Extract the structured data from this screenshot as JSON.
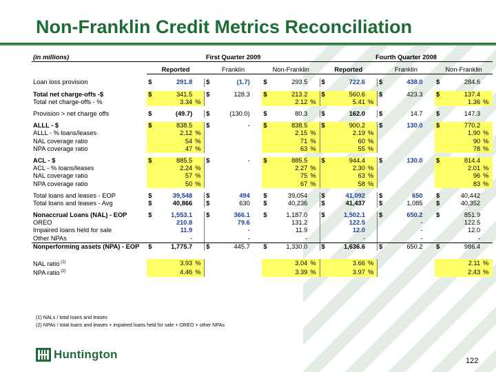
{
  "title": "Non-Franklin Credit Metrics Reconciliation",
  "units": "(in millions)",
  "periods": [
    "First Quarter 2009",
    "Fourth Quarter 2008"
  ],
  "columns": [
    "Reported",
    "Franklin",
    "Non-Franklin",
    "Reported",
    "Franklin",
    "Non-Franklin"
  ],
  "rows": [
    {
      "label": "Loan loss provision",
      "bold": false,
      "cells": [
        [
          "$",
          "291.8",
          "",
          "blue"
        ],
        [
          "$",
          "(1.7)",
          "",
          "blue"
        ],
        [
          "$",
          "293.5",
          "",
          ""
        ],
        [
          "$",
          "722.6",
          "",
          "blue"
        ],
        [
          "$",
          "438.0",
          "",
          "blue"
        ],
        [
          "$",
          "284.6",
          "",
          ""
        ]
      ]
    },
    {
      "sp": true
    },
    {
      "label": "Total net charge-offs -$",
      "bold": true,
      "cells": [
        [
          "$",
          "341.5",
          "",
          "y"
        ],
        [
          "$",
          "128.3",
          "",
          ""
        ],
        [
          "$",
          "213.2",
          "",
          "y"
        ],
        [
          "$",
          "560.6",
          "",
          "y"
        ],
        [
          "$",
          "423.3",
          "",
          ""
        ],
        [
          "$",
          "137.4",
          "",
          "y"
        ]
      ]
    },
    {
      "label": "Total net charge-offs - %",
      "bold": false,
      "cells": [
        [
          "",
          "3.34",
          "%",
          "y"
        ],
        [
          "",
          "",
          "",
          ""
        ],
        [
          "",
          "2.12",
          "%",
          "y"
        ],
        [
          "",
          "5.41",
          "%",
          "y"
        ],
        [
          "",
          "",
          "",
          ""
        ],
        [
          "",
          "1.36",
          "%",
          "y"
        ]
      ]
    },
    {
      "sp": true
    },
    {
      "label": "Provision > net charge offs",
      "bold": false,
      "cells": [
        [
          "$",
          "(49.7)",
          "",
          "b"
        ],
        [
          "$",
          "(130.0)",
          "",
          ""
        ],
        [
          "$",
          "80.3",
          "",
          ""
        ],
        [
          "$",
          "162.0",
          "",
          "b"
        ],
        [
          "$",
          "14.7",
          "",
          ""
        ],
        [
          "$",
          "147.3",
          "",
          ""
        ]
      ]
    },
    {
      "sp": true
    },
    {
      "label": "ALLL - $",
      "bold": true,
      "cells": [
        [
          "$",
          "838.5",
          "",
          "y"
        ],
        [
          "$",
          "-",
          "",
          ""
        ],
        [
          "$",
          "838.5",
          "",
          "y"
        ],
        [
          "$",
          "900.2",
          "",
          "y"
        ],
        [
          "$",
          "130.0",
          "",
          "blue"
        ],
        [
          "$",
          "770.2",
          "",
          "y"
        ]
      ]
    },
    {
      "label": "ALLL - % loans/leases",
      "bold": false,
      "cells": [
        [
          "",
          "2.12",
          "%",
          "y"
        ],
        [
          "",
          "",
          "",
          ""
        ],
        [
          "",
          "2.15",
          "%",
          "y"
        ],
        [
          "",
          "2.19",
          "%",
          "y"
        ],
        [
          "",
          "",
          "",
          ""
        ],
        [
          "",
          "1.90",
          "%",
          "y"
        ]
      ]
    },
    {
      "label": "NAL coverage ratio",
      "bold": false,
      "cells": [
        [
          "",
          "54",
          "%",
          "y"
        ],
        [
          "",
          "",
          "",
          ""
        ],
        [
          "",
          "71",
          "%",
          "y"
        ],
        [
          "",
          "60",
          "%",
          "y"
        ],
        [
          "",
          "",
          "",
          ""
        ],
        [
          "",
          "90",
          "%",
          "y"
        ]
      ]
    },
    {
      "label": "NPA coverage ratio",
      "bold": false,
      "cells": [
        [
          "",
          "47",
          "%",
          "y"
        ],
        [
          "",
          "",
          "",
          ""
        ],
        [
          "",
          "63",
          "%",
          "y"
        ],
        [
          "",
          "55",
          "%",
          "y"
        ],
        [
          "",
          "",
          "",
          ""
        ],
        [
          "",
          "78",
          "%",
          "y"
        ]
      ]
    },
    {
      "sp": true
    },
    {
      "label": "ACL - $",
      "bold": true,
      "cells": [
        [
          "$",
          "885.5",
          "",
          "y"
        ],
        [
          "$",
          "-",
          "",
          ""
        ],
        [
          "$",
          "885.5",
          "",
          "y"
        ],
        [
          "$",
          "944.4",
          "",
          "y"
        ],
        [
          "$",
          "130.0",
          "",
          "blue"
        ],
        [
          "$",
          "814.4",
          "",
          "y"
        ]
      ]
    },
    {
      "label": "ACL - % loans/leases",
      "bold": false,
      "cells": [
        [
          "",
          "2.24",
          "%",
          "y"
        ],
        [
          "",
          "",
          "",
          ""
        ],
        [
          "",
          "2.27",
          "%",
          "y"
        ],
        [
          "",
          "2.30",
          "%",
          "y"
        ],
        [
          "",
          "",
          "",
          ""
        ],
        [
          "",
          "2.01",
          "%",
          "y"
        ]
      ]
    },
    {
      "label": "NAL coverage ratio",
      "bold": false,
      "cells": [
        [
          "",
          "57",
          "%",
          "y"
        ],
        [
          "",
          "",
          "",
          ""
        ],
        [
          "",
          "75",
          "%",
          "y"
        ],
        [
          "",
          "63",
          "%",
          "y"
        ],
        [
          "",
          "",
          "",
          ""
        ],
        [
          "",
          "96",
          "%",
          "y"
        ]
      ]
    },
    {
      "label": "NPA coverage ratio",
      "bold": false,
      "cells": [
        [
          "",
          "50",
          "%",
          "y"
        ],
        [
          "",
          "",
          "",
          ""
        ],
        [
          "",
          "67",
          "%",
          "y"
        ],
        [
          "",
          "58",
          "%",
          "y"
        ],
        [
          "",
          "",
          "",
          ""
        ],
        [
          "",
          "83",
          "%",
          "y"
        ]
      ]
    },
    {
      "sp": true
    },
    {
      "label": "Total loans and leases - EOP",
      "bold": false,
      "cells": [
        [
          "$",
          "39,548",
          "",
          "blue"
        ],
        [
          "$",
          "494",
          "",
          "blue"
        ],
        [
          "$",
          "39,054",
          "",
          ""
        ],
        [
          "$",
          "41,092",
          "",
          "blue"
        ],
        [
          "$",
          "650",
          "",
          "blue"
        ],
        [
          "$",
          "40,442",
          "",
          ""
        ]
      ]
    },
    {
      "label": "Total loans and leases - Avg",
      "bold": false,
      "cells": [
        [
          "$",
          "40,866",
          "",
          "b"
        ],
        [
          "$",
          "630",
          "",
          ""
        ],
        [
          "$",
          "40,236",
          "",
          ""
        ],
        [
          "$",
          "41,437",
          "",
          "b"
        ],
        [
          "$",
          "1,085",
          "",
          ""
        ],
        [
          "$",
          "40,352",
          "",
          ""
        ]
      ]
    },
    {
      "sp": true
    },
    {
      "label": "Nonaccrual Loans (NAL) - EOP",
      "bold": true,
      "cells": [
        [
          "$",
          "1,553.1",
          "",
          "blue"
        ],
        [
          "$",
          "366.1",
          "",
          "blue"
        ],
        [
          "$",
          "1,187.0",
          "",
          ""
        ],
        [
          "$",
          "1,502.1",
          "",
          "blue"
        ],
        [
          "$",
          "650.2",
          "",
          "blue"
        ],
        [
          "$",
          "851.9",
          "",
          ""
        ]
      ]
    },
    {
      "label": "OREO",
      "bold": false,
      "cells": [
        [
          "",
          "210.8",
          "",
          "blue"
        ],
        [
          "",
          "79.6",
          "",
          "blue"
        ],
        [
          "",
          "131.2",
          "",
          ""
        ],
        [
          "",
          "122.5",
          "",
          "blue"
        ],
        [
          "",
          "-",
          "",
          ""
        ],
        [
          "",
          "122.5",
          "",
          ""
        ]
      ]
    },
    {
      "label": "Impaired loans held for sale",
      "bold": false,
      "cells": [
        [
          "",
          "11.9",
          "",
          "blue"
        ],
        [
          "",
          "-",
          "",
          ""
        ],
        [
          "",
          "11.9",
          "",
          ""
        ],
        [
          "",
          "12.0",
          "",
          "blue"
        ],
        [
          "",
          "-",
          "",
          ""
        ],
        [
          "",
          "12.0",
          "",
          ""
        ]
      ]
    },
    {
      "label": "Other NPAs",
      "bold": false,
      "line": true,
      "cells": [
        [
          "",
          "-",
          "",
          ""
        ],
        [
          "",
          "-",
          "",
          ""
        ],
        [
          "",
          "-",
          "",
          ""
        ],
        [
          "",
          "-",
          "",
          ""
        ],
        [
          "",
          "-",
          "",
          ""
        ],
        [
          "",
          "-",
          "",
          ""
        ]
      ]
    },
    {
      "label": "Nonperforming assets (NPA) - EOP",
      "bold": true,
      "cells": [
        [
          "$",
          "1,775.7",
          "",
          "b"
        ],
        [
          "$",
          "445.7",
          "",
          ""
        ],
        [
          "$",
          "1,330.0",
          "",
          ""
        ],
        [
          "$",
          "1,636.6",
          "",
          "b"
        ],
        [
          "$",
          "650.2",
          "",
          ""
        ],
        [
          "$",
          "986.4",
          "",
          ""
        ]
      ]
    },
    {
      "sp": true
    },
    {
      "sp": true
    },
    {
      "label": "NAL ratio",
      "sup": "(1)",
      "bold": false,
      "cells": [
        [
          "",
          "3.93",
          "%",
          "y"
        ],
        [
          "",
          "",
          "",
          ""
        ],
        [
          "",
          "3.04",
          "%",
          "y"
        ],
        [
          "",
          "3.66",
          "%",
          "y"
        ],
        [
          "",
          "",
          "",
          ""
        ],
        [
          "",
          "2.11",
          "%",
          "y"
        ]
      ]
    },
    {
      "label": "NPA ratio",
      "sup": "(2)",
      "bold": false,
      "cells": [
        [
          "",
          "4.46",
          "%",
          "y"
        ],
        [
          "",
          "",
          "",
          ""
        ],
        [
          "",
          "3.39",
          "%",
          "y"
        ],
        [
          "",
          "3.97",
          "%",
          "y"
        ],
        [
          "",
          "",
          "",
          ""
        ],
        [
          "",
          "2.43",
          "%",
          "y"
        ]
      ]
    }
  ],
  "footnotes": [
    "(1) NALs / total loans and leases",
    "(2) NPAs / total loans and leases + impaired loans held for sale + OREO + other NPAs"
  ],
  "logo": "Huntington",
  "page_number": "122"
}
